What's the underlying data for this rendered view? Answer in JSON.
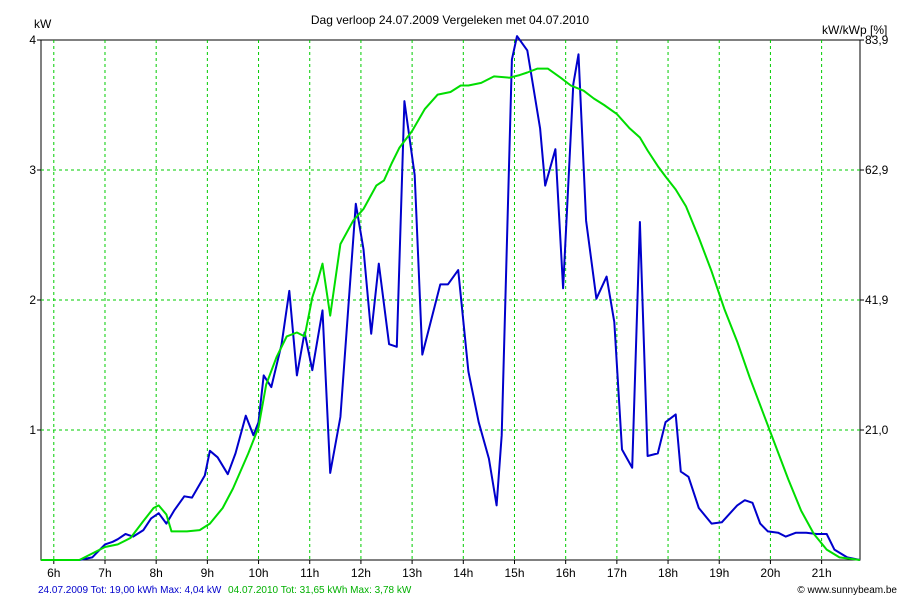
{
  "chart_data": {
    "type": "line",
    "title": "Dag  verloop 24.07.2009   Vergeleken met 04.07.2010",
    "ylabel": "kW",
    "y2label": "kW/kWp [%]",
    "x_ticks": [
      "6h",
      "7h",
      "8h",
      "9h",
      "10h",
      "11h",
      "12h",
      "13h",
      "14h",
      "15h",
      "16h",
      "17h",
      "18h",
      "19h",
      "20h",
      "21h"
    ],
    "y_ticks": [
      "1",
      "2",
      "3",
      "4"
    ],
    "y2_ticks": [
      "21,0",
      "41,9",
      "62,9",
      "83,9"
    ],
    "xlim": [
      5.75,
      21.75
    ],
    "ylim": [
      0,
      4
    ],
    "grid": true,
    "series": [
      {
        "color": "#0000cc",
        "points": [
          [
            5.75,
            0
          ],
          [
            6.25,
            0
          ],
          [
            6.5,
            0
          ],
          [
            6.75,
            0.02
          ],
          [
            7.0,
            0.12
          ],
          [
            7.15,
            0.14
          ],
          [
            7.25,
            0.16
          ],
          [
            7.4,
            0.2
          ],
          [
            7.55,
            0.18
          ],
          [
            7.75,
            0.23
          ],
          [
            7.9,
            0.32
          ],
          [
            8.05,
            0.36
          ],
          [
            8.2,
            0.28
          ],
          [
            8.35,
            0.38
          ],
          [
            8.55,
            0.49
          ],
          [
            8.7,
            0.48
          ],
          [
            8.95,
            0.65
          ],
          [
            9.05,
            0.84
          ],
          [
            9.2,
            0.79
          ],
          [
            9.4,
            0.66
          ],
          [
            9.55,
            0.82
          ],
          [
            9.75,
            1.11
          ],
          [
            9.9,
            0.96
          ],
          [
            10.0,
            1.06
          ],
          [
            10.1,
            1.42
          ],
          [
            10.25,
            1.33
          ],
          [
            10.45,
            1.66
          ],
          [
            10.6,
            2.07
          ],
          [
            10.75,
            1.42
          ],
          [
            10.9,
            1.75
          ],
          [
            11.05,
            1.46
          ],
          [
            11.25,
            1.92
          ],
          [
            11.4,
            0.67
          ],
          [
            11.6,
            1.1
          ],
          [
            11.9,
            2.74
          ],
          [
            12.05,
            2.39
          ],
          [
            12.2,
            1.74
          ],
          [
            12.35,
            2.28
          ],
          [
            12.55,
            1.66
          ],
          [
            12.7,
            1.64
          ],
          [
            12.85,
            3.53
          ],
          [
            13.05,
            2.96
          ],
          [
            13.2,
            1.58
          ],
          [
            13.55,
            2.12
          ],
          [
            13.7,
            2.12
          ],
          [
            13.9,
            2.23
          ],
          [
            14.1,
            1.45
          ],
          [
            14.3,
            1.06
          ],
          [
            14.5,
            0.78
          ],
          [
            14.65,
            0.42
          ],
          [
            14.75,
            0.96
          ],
          [
            14.95,
            3.85
          ],
          [
            15.05,
            4.03
          ],
          [
            15.25,
            3.92
          ],
          [
            15.5,
            3.32
          ],
          [
            15.6,
            2.88
          ],
          [
            15.8,
            3.16
          ],
          [
            15.95,
            2.09
          ],
          [
            16.15,
            3.66
          ],
          [
            16.25,
            3.89
          ],
          [
            16.4,
            2.61
          ],
          [
            16.6,
            2.01
          ],
          [
            16.8,
            2.18
          ],
          [
            16.95,
            1.83
          ],
          [
            17.1,
            0.85
          ],
          [
            17.3,
            0.71
          ],
          [
            17.45,
            2.6
          ],
          [
            17.6,
            0.8
          ],
          [
            17.8,
            0.82
          ],
          [
            17.95,
            1.06
          ],
          [
            18.15,
            1.12
          ],
          [
            18.25,
            0.68
          ],
          [
            18.4,
            0.64
          ],
          [
            18.6,
            0.4
          ],
          [
            18.85,
            0.28
          ],
          [
            19.05,
            0.29
          ],
          [
            19.35,
            0.42
          ],
          [
            19.5,
            0.46
          ],
          [
            19.65,
            0.44
          ],
          [
            19.8,
            0.28
          ],
          [
            19.95,
            0.22
          ],
          [
            20.15,
            0.21
          ],
          [
            20.3,
            0.18
          ],
          [
            20.5,
            0.21
          ],
          [
            20.7,
            0.21
          ],
          [
            20.9,
            0.2
          ],
          [
            21.1,
            0.2
          ],
          [
            21.25,
            0.08
          ],
          [
            21.5,
            0.02
          ],
          [
            21.75,
            0
          ]
        ]
      },
      {
        "color": "#00dd00",
        "points": [
          [
            5.75,
            0
          ],
          [
            6.5,
            0
          ],
          [
            6.75,
            0.05
          ],
          [
            7.0,
            0.1
          ],
          [
            7.25,
            0.12
          ],
          [
            7.5,
            0.17
          ],
          [
            7.75,
            0.3
          ],
          [
            7.95,
            0.4
          ],
          [
            8.05,
            0.42
          ],
          [
            8.2,
            0.35
          ],
          [
            8.3,
            0.22
          ],
          [
            8.6,
            0.22
          ],
          [
            8.85,
            0.23
          ],
          [
            9.05,
            0.28
          ],
          [
            9.3,
            0.4
          ],
          [
            9.5,
            0.55
          ],
          [
            9.8,
            0.82
          ],
          [
            10.0,
            1.02
          ],
          [
            10.15,
            1.35
          ],
          [
            10.35,
            1.56
          ],
          [
            10.55,
            1.72
          ],
          [
            10.75,
            1.75
          ],
          [
            10.9,
            1.72
          ],
          [
            11.05,
            2.02
          ],
          [
            11.15,
            2.14
          ],
          [
            11.25,
            2.28
          ],
          [
            11.4,
            1.88
          ],
          [
            11.6,
            2.43
          ],
          [
            11.85,
            2.61
          ],
          [
            12.05,
            2.7
          ],
          [
            12.3,
            2.88
          ],
          [
            12.45,
            2.92
          ],
          [
            12.6,
            3.05
          ],
          [
            12.75,
            3.17
          ],
          [
            13.0,
            3.3
          ],
          [
            13.25,
            3.47
          ],
          [
            13.5,
            3.58
          ],
          [
            13.75,
            3.6
          ],
          [
            13.95,
            3.65
          ],
          [
            14.1,
            3.65
          ],
          [
            14.35,
            3.67
          ],
          [
            14.6,
            3.72
          ],
          [
            14.9,
            3.71
          ],
          [
            15.1,
            3.73
          ],
          [
            15.25,
            3.75
          ],
          [
            15.45,
            3.78
          ],
          [
            15.65,
            3.78
          ],
          [
            15.9,
            3.71
          ],
          [
            16.1,
            3.65
          ],
          [
            16.35,
            3.61
          ],
          [
            16.55,
            3.55
          ],
          [
            16.75,
            3.5
          ],
          [
            17.0,
            3.43
          ],
          [
            17.25,
            3.32
          ],
          [
            17.45,
            3.25
          ],
          [
            17.6,
            3.15
          ],
          [
            17.8,
            3.03
          ],
          [
            17.95,
            2.95
          ],
          [
            18.15,
            2.85
          ],
          [
            18.35,
            2.72
          ],
          [
            18.6,
            2.48
          ],
          [
            18.85,
            2.22
          ],
          [
            19.1,
            1.93
          ],
          [
            19.35,
            1.68
          ],
          [
            19.6,
            1.4
          ],
          [
            19.85,
            1.14
          ],
          [
            20.1,
            0.88
          ],
          [
            20.35,
            0.62
          ],
          [
            20.6,
            0.38
          ],
          [
            20.85,
            0.2
          ],
          [
            21.1,
            0.08
          ],
          [
            21.35,
            0.02
          ],
          [
            21.75,
            0
          ]
        ]
      }
    ]
  },
  "footer": {
    "blue_text": "24.07.2009 Tot: 19,00 kWh Max: 4,04 kW",
    "green_text": "04.07.2010 Tot: 31,65 kWh Max: 3,78 kW",
    "copyright": "© www.sunnybeam.be"
  }
}
